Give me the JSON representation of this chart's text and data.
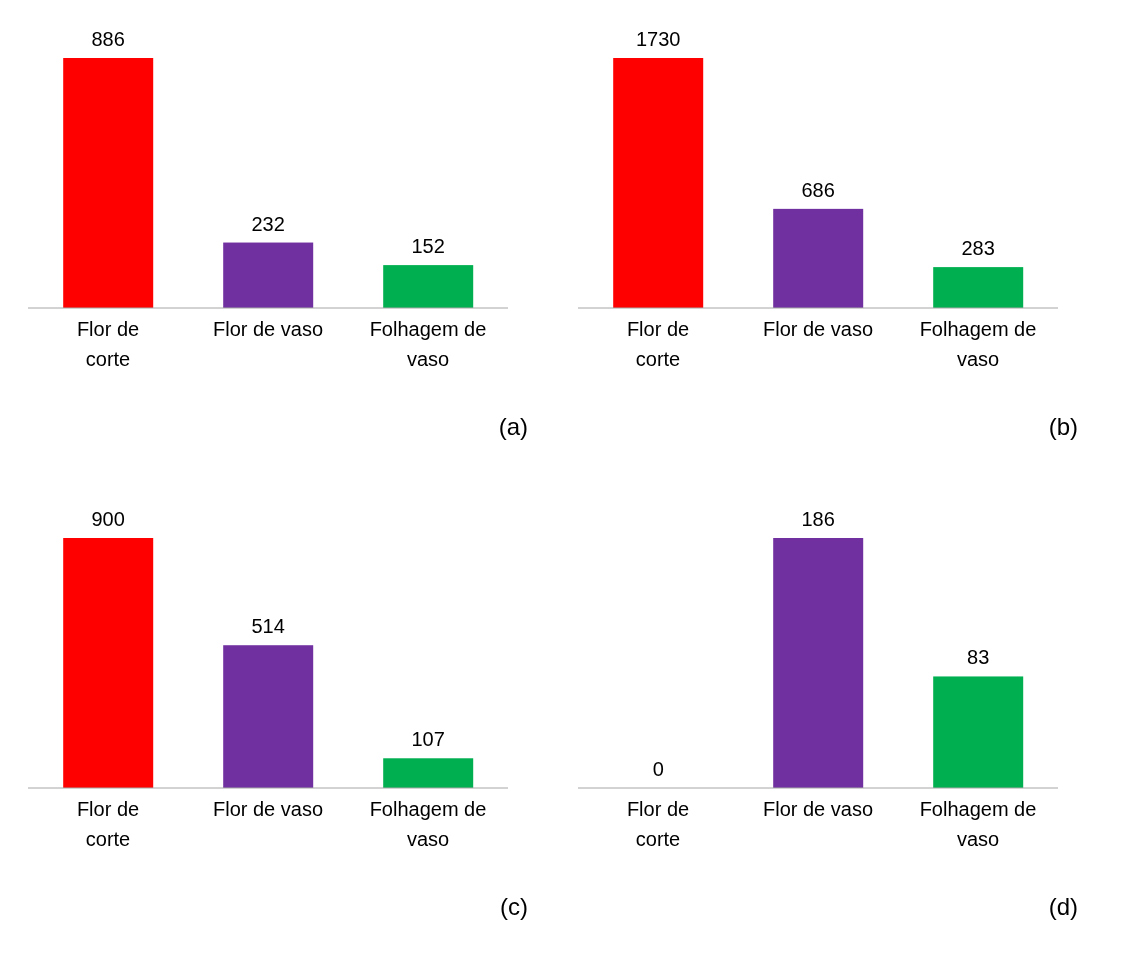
{
  "chart_data": [
    {
      "type": "bar",
      "categories": [
        "Flor de corte",
        "Flor de vaso",
        "Folhagem de vaso"
      ],
      "values": [
        886,
        232,
        152
      ],
      "colors": [
        "#ff0000",
        "#7030a0",
        "#00b050"
      ],
      "data_labels": true,
      "annotations": [
        "(a)"
      ]
    },
    {
      "type": "bar",
      "categories": [
        "Flor de corte",
        "Flor de vaso",
        "Folhagem de vaso"
      ],
      "values": [
        1730,
        686,
        283
      ],
      "colors": [
        "#ff0000",
        "#7030a0",
        "#00b050"
      ],
      "data_labels": true,
      "annotations": [
        "(b)"
      ]
    },
    {
      "type": "bar",
      "categories": [
        "Flor de corte",
        "Flor de vaso",
        "Folhagem de vaso"
      ],
      "values": [
        900,
        514,
        107
      ],
      "colors": [
        "#ff0000",
        "#7030a0",
        "#00b050"
      ],
      "data_labels": true,
      "annotations": [
        "(c)"
      ]
    },
    {
      "type": "bar",
      "categories": [
        "Flor de corte",
        "Flor de vaso",
        "Folhagem de vaso"
      ],
      "values": [
        0,
        186,
        83
      ],
      "colors": [
        "#ff0000",
        "#7030a0",
        "#00b050"
      ],
      "data_labels": true,
      "annotations": [
        "(d)"
      ]
    }
  ]
}
